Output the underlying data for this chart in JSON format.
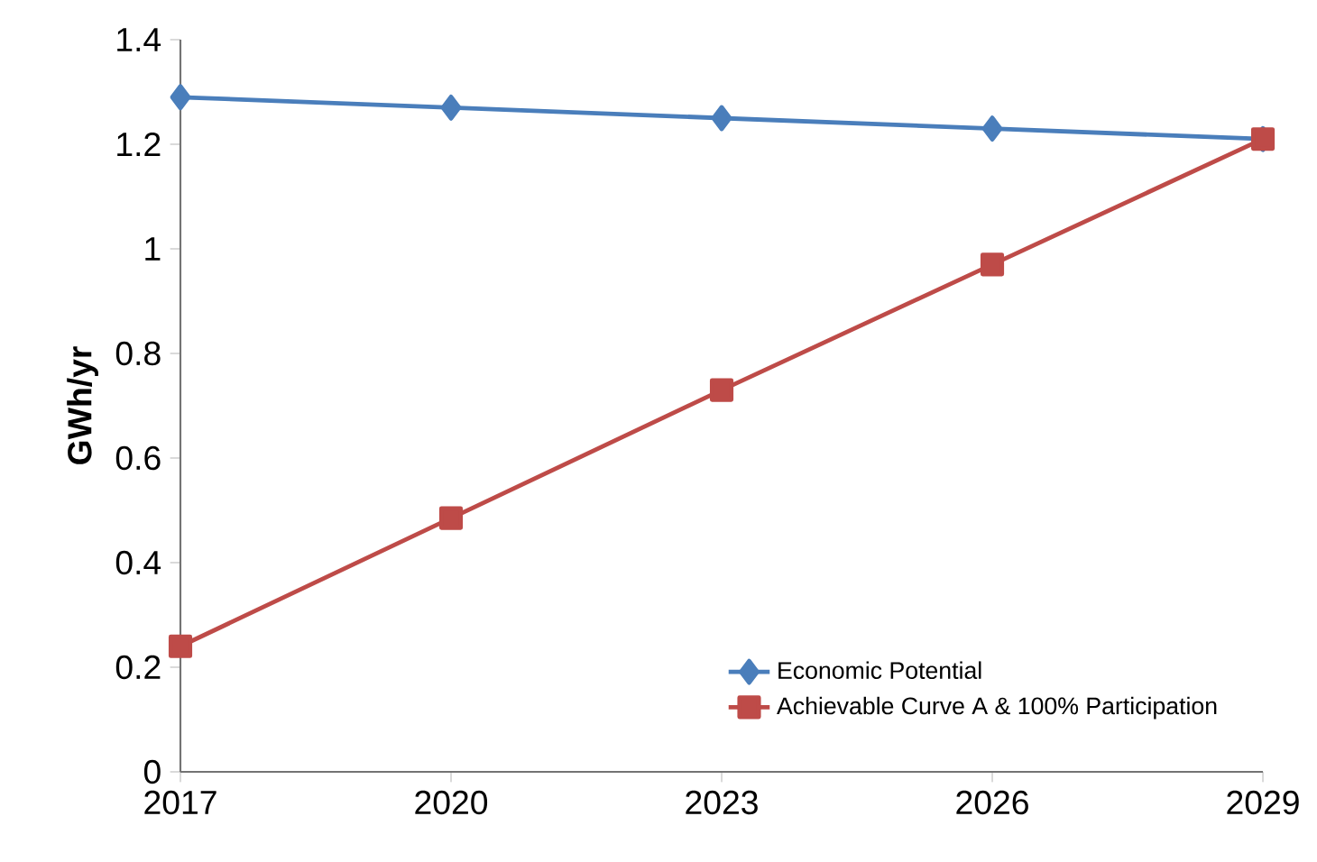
{
  "chart_data": {
    "type": "line",
    "ylabel": "GWh/yr",
    "x": [
      2017,
      2020,
      2023,
      2026,
      2029
    ],
    "xlim": [
      2017,
      2029
    ],
    "xticks": [
      2017,
      2020,
      2023,
      2026,
      2029
    ],
    "ylim": [
      0,
      1.4
    ],
    "yticks": [
      0,
      0.2,
      0.4,
      0.6,
      0.8,
      1,
      1.2,
      1.4
    ],
    "grid": false,
    "legend": "bottom right",
    "series": [
      {
        "name": "Economic Potential",
        "color": "#4a7ebb",
        "marker": "diamond",
        "values": [
          1.29,
          1.27,
          1.25,
          1.23,
          1.21
        ]
      },
      {
        "name": "Achievable Curve A & 100% Participation",
        "color": "#be4b48",
        "marker": "square",
        "values": [
          0.24,
          0.485,
          0.73,
          0.97,
          1.21
        ]
      }
    ]
  }
}
